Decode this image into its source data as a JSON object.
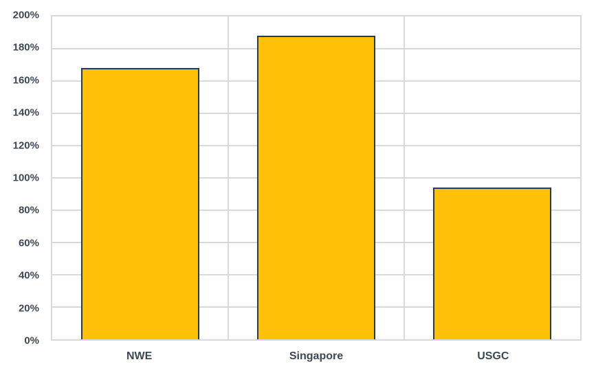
{
  "chart_data": {
    "type": "bar",
    "categories": [
      "NWE",
      "Singapore",
      "USGC"
    ],
    "values": [
      168,
      188,
      94
    ],
    "unit": "%",
    "ylim": [
      0,
      200
    ],
    "ytick_step": 20,
    "ytick_labels": [
      "0%",
      "20%",
      "40%",
      "60%",
      "80%",
      "100%",
      "120%",
      "140%",
      "160%",
      "180%",
      "200%"
    ],
    "xlabel": "",
    "ylabel": "",
    "grid": true,
    "legend": false,
    "colors": {
      "bar_fill": "#FFC107",
      "bar_border": "#1F3D5C",
      "gridline": "#D9D9D9",
      "tick_text": "#3D4854",
      "background": "#FFFFFF"
    }
  }
}
